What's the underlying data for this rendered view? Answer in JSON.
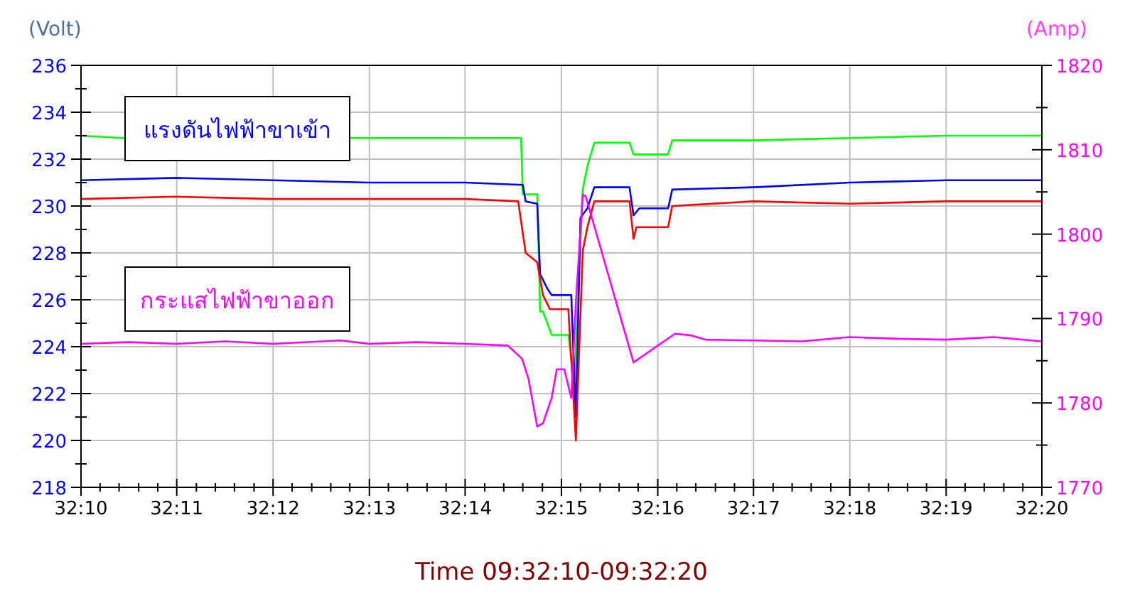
{
  "chart_data": {
    "type": "line",
    "xlabel": "Time 09:32:10-09:32:20",
    "ylabel": "(Volt)",
    "y2label": "(Amp)",
    "annotations": [
      "แรงดันไฟฟ้าขาเข้า",
      "กระแสไฟฟ้าขาออก"
    ],
    "xlim": [
      32.1667,
      32.3333
    ],
    "xticks": [
      {
        "value": 32.1667,
        "label": "32:10"
      },
      {
        "value": 32.17,
        "label": null
      },
      {
        "value": 32.1733,
        "label": null
      },
      {
        "value": 32.1767,
        "label": null
      },
      {
        "value": 32.18,
        "label": null
      },
      {
        "value": 32.1833,
        "label": "32:11"
      },
      {
        "value": 32.1867,
        "label": null
      },
      {
        "value": 32.19,
        "label": null
      },
      {
        "value": 32.1933,
        "label": null
      },
      {
        "value": 32.1967,
        "label": null
      },
      {
        "value": 32.2,
        "label": "32:12"
      },
      {
        "value": 32.2033,
        "label": null
      },
      {
        "value": 32.2067,
        "label": null
      },
      {
        "value": 32.21,
        "label": null
      },
      {
        "value": 32.2133,
        "label": null
      },
      {
        "value": 32.2167,
        "label": "32:13"
      },
      {
        "value": 32.22,
        "label": null
      },
      {
        "value": 32.2233,
        "label": null
      },
      {
        "value": 32.2267,
        "label": null
      },
      {
        "value": 32.23,
        "label": null
      },
      {
        "value": 32.2333,
        "label": "32:14"
      },
      {
        "value": 32.2367,
        "label": null
      },
      {
        "value": 32.24,
        "label": null
      },
      {
        "value": 32.2433,
        "label": null
      },
      {
        "value": 32.2467,
        "label": null
      },
      {
        "value": 32.25,
        "label": "32:15"
      },
      {
        "value": 32.2533,
        "label": null
      },
      {
        "value": 32.2567,
        "label": null
      },
      {
        "value": 32.26,
        "label": null
      },
      {
        "value": 32.2633,
        "label": null
      },
      {
        "value": 32.2667,
        "label": "32:16"
      },
      {
        "value": 32.27,
        "label": null
      },
      {
        "value": 32.2733,
        "label": null
      },
      {
        "value": 32.2767,
        "label": null
      },
      {
        "value": 32.28,
        "label": null
      },
      {
        "value": 32.2833,
        "label": "32:17"
      },
      {
        "value": 32.2867,
        "label": null
      },
      {
        "value": 32.29,
        "label": null
      },
      {
        "value": 32.2933,
        "label": null
      },
      {
        "value": 32.2967,
        "label": null
      },
      {
        "value": 32.3,
        "label": "32:18"
      },
      {
        "value": 32.3033,
        "label": null
      },
      {
        "value": 32.3067,
        "label": null
      },
      {
        "value": 32.31,
        "label": null
      },
      {
        "value": 32.3133,
        "label": null
      },
      {
        "value": 32.3167,
        "label": "32:19"
      },
      {
        "value": 32.32,
        "label": null
      },
      {
        "value": 32.3233,
        "label": null
      },
      {
        "value": 32.3267,
        "label": null
      },
      {
        "value": 32.33,
        "label": null
      },
      {
        "value": 32.3333,
        "label": "32:20"
      }
    ],
    "ylim": [
      218,
      236
    ],
    "yticks": [
      218,
      {
        "value": 219,
        "label": null
      },
      220,
      {
        "value": 221,
        "label": null
      },
      222,
      {
        "value": 223,
        "label": null
      },
      224,
      {
        "value": 225,
        "label": null
      },
      226,
      {
        "value": 227,
        "label": null
      },
      228,
      {
        "value": 229,
        "label": null
      },
      230,
      {
        "value": 231,
        "label": null
      },
      232,
      {
        "value": 233,
        "label": null
      },
      234,
      {
        "value": 235,
        "label": null
      },
      236
    ],
    "y2lim": [
      1770,
      1820
    ],
    "y2ticks": [
      1770,
      {
        "value": 1775,
        "label": null
      },
      1780,
      {
        "value": 1785,
        "label": null
      },
      1790,
      {
        "value": 1795,
        "label": null
      },
      1800,
      {
        "value": 1805,
        "label": null
      },
      1810,
      {
        "value": 1815,
        "label": null
      },
      1820
    ],
    "grid": true,
    "marker": "none",
    "line_style": "solid",
    "series": [
      {
        "color": "#00ff00",
        "x": [
          32.1667,
          32.1738,
          32.2138,
          32.2333,
          32.243,
          32.2433,
          32.2458,
          32.2463,
          32.2468,
          32.2483,
          32.2512,
          32.2522,
          32.253,
          32.2537,
          32.2545,
          32.2557,
          32.2618,
          32.2625,
          32.2685,
          32.2692,
          32.2833,
          32.3,
          32.3167,
          32.3333
        ],
        "values": [
          233.0,
          232.9,
          232.9,
          232.9,
          232.9,
          230.5,
          230.5,
          225.5,
          225.5,
          224.5,
          224.5,
          222.5,
          226.7,
          230.7,
          231.7,
          232.7,
          232.7,
          232.2,
          232.2,
          232.8,
          232.8,
          232.9,
          233.0,
          233.0
        ]
      },
      {
        "color": "#0000ff",
        "x": [
          32.1667,
          32.1833,
          32.2,
          32.2167,
          32.2333,
          32.2433,
          32.2438,
          32.2458,
          32.2463,
          32.2475,
          32.2483,
          32.2517,
          32.2525,
          32.2533,
          32.2545,
          32.2557,
          32.2618,
          32.2625,
          32.2635,
          32.2685,
          32.2692,
          32.2833,
          32.3,
          32.3167,
          32.3333
        ],
        "values": [
          231.1,
          231.2,
          231.1,
          231.0,
          231.0,
          230.9,
          230.2,
          230.1,
          227.1,
          226.5,
          226.2,
          226.2,
          221.0,
          229.5,
          229.9,
          230.8,
          230.8,
          229.6,
          229.9,
          229.9,
          230.7,
          230.8,
          231.0,
          231.1,
          231.1
        ]
      },
      {
        "color": "#ff0000",
        "x": [
          32.1667,
          32.1833,
          32.2,
          32.2167,
          32.2333,
          32.2425,
          32.2438,
          32.2458,
          32.2468,
          32.248,
          32.2512,
          32.2525,
          32.2537,
          32.2545,
          32.2557,
          32.2618,
          32.2625,
          32.263,
          32.2685,
          32.2692,
          32.2833,
          32.3,
          32.3167,
          32.3333
        ],
        "values": [
          230.3,
          230.4,
          230.3,
          230.3,
          230.3,
          230.2,
          228.0,
          227.6,
          226.2,
          225.6,
          225.6,
          220.0,
          228.1,
          229.1,
          230.2,
          230.2,
          228.6,
          229.1,
          229.1,
          230.0,
          230.2,
          230.1,
          230.2,
          230.2
        ]
      },
      {
        "color": "#ff00ff",
        "axis": "y2",
        "x": [
          32.1667,
          32.175,
          32.1833,
          32.1917,
          32.2,
          32.2117,
          32.2167,
          32.225,
          32.2333,
          32.2407,
          32.2432,
          32.2443,
          32.2458,
          32.2468,
          32.2483,
          32.2492,
          32.2505,
          32.2517,
          32.2525,
          32.2537,
          32.2542,
          32.2625,
          32.2697,
          32.2725,
          32.275,
          32.2833,
          32.2917,
          32.3,
          32.3083,
          32.3167,
          32.325,
          32.3333
        ],
        "values": [
          1787.0,
          1787.2,
          1787.0,
          1787.3,
          1787.0,
          1787.4,
          1787.0,
          1787.2,
          1787.0,
          1786.8,
          1785.2,
          1782.8,
          1777.2,
          1777.6,
          1780.6,
          1784.0,
          1784.0,
          1780.6,
          1791.9,
          1804.7,
          1804.5,
          1784.8,
          1788.2,
          1788.0,
          1787.5,
          1787.4,
          1787.3,
          1787.8,
          1787.6,
          1787.5,
          1787.8,
          1787.3
        ]
      }
    ]
  }
}
